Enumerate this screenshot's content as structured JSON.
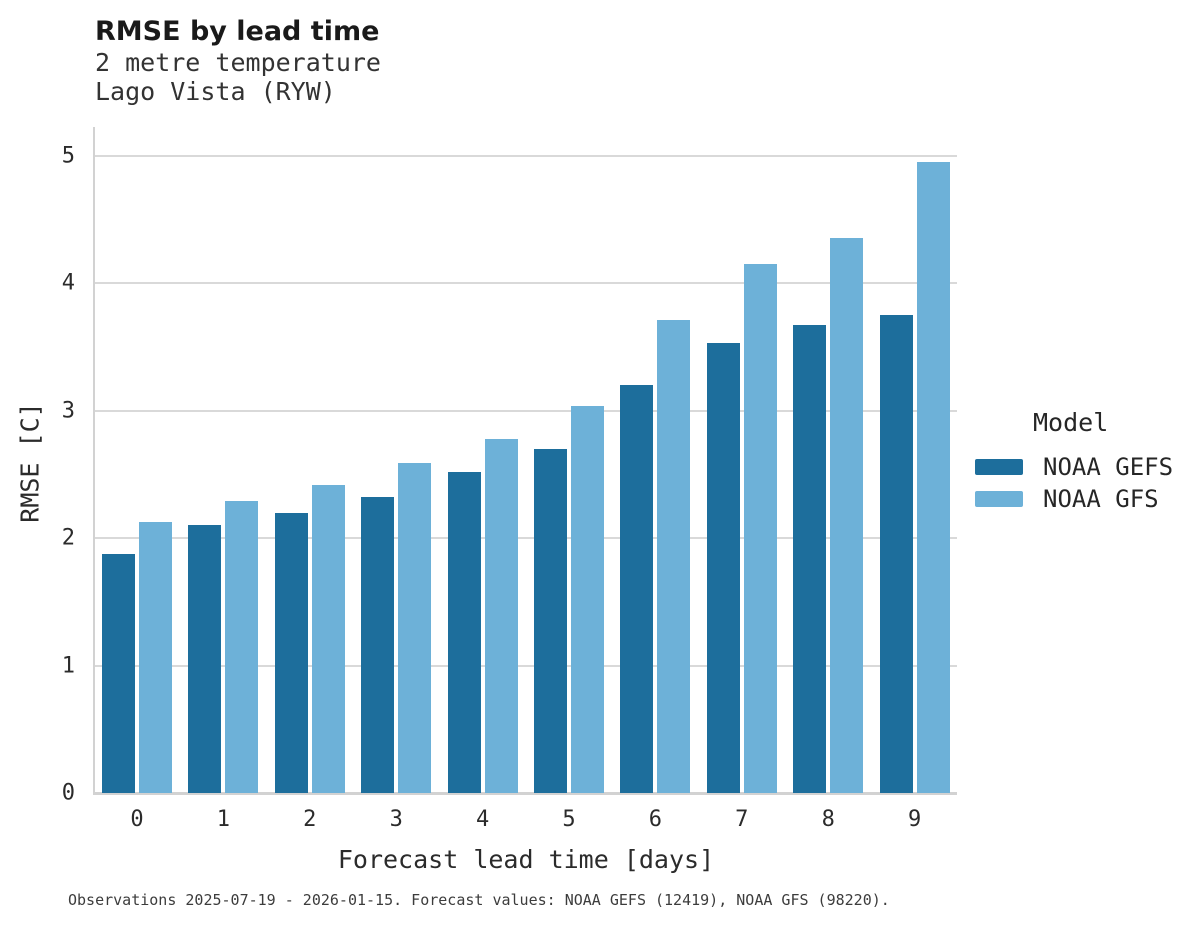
{
  "header": {
    "title": "RMSE by lead time",
    "subtitle_line1": "2 metre temperature",
    "subtitle_line2": "Lago Vista (RYW)"
  },
  "chart_data": {
    "type": "bar",
    "title": "RMSE by lead time",
    "subtitle": [
      "2 metre temperature",
      "Lago Vista (RYW)"
    ],
    "categories": [
      "0",
      "1",
      "2",
      "3",
      "4",
      "5",
      "6",
      "7",
      "8",
      "9"
    ],
    "series": [
      {
        "name": "NOAA GEFS",
        "color": "#1d6e9c",
        "values": [
          1.88,
          2.1,
          2.2,
          2.32,
          2.52,
          2.7,
          3.2,
          3.53,
          3.67,
          3.75
        ]
      },
      {
        "name": "NOAA GFS",
        "color": "#6db1d8",
        "values": [
          2.13,
          2.29,
          2.42,
          2.59,
          2.78,
          3.04,
          3.71,
          4.15,
          4.36,
          4.95
        ]
      }
    ],
    "xlabel": "Forecast lead time [days]",
    "ylabel": "RMSE [C]",
    "ylim": [
      0,
      5.23
    ],
    "yticks": [
      0,
      1,
      2,
      3,
      4,
      5
    ],
    "grid": "horizontal",
    "legend_title": "Model",
    "legend_position": "right"
  },
  "legend": {
    "title": "Model",
    "items": [
      {
        "label": "NOAA GEFS",
        "color": "#1d6e9c"
      },
      {
        "label": "NOAA GFS",
        "color": "#6db1d8"
      }
    ]
  },
  "footer": {
    "note": "Observations 2025-07-19 - 2026-01-15. Forecast values: NOAA GEFS (12419), NOAA GFS (98220)."
  }
}
